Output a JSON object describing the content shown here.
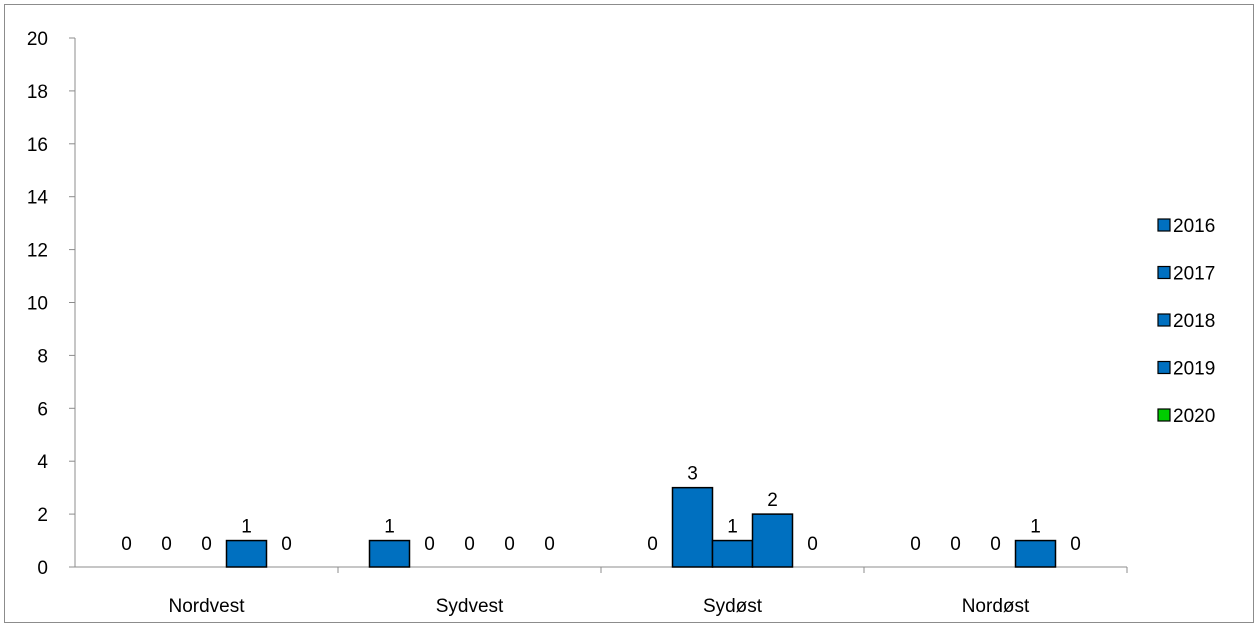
{
  "chart_data": {
    "type": "bar",
    "categories": [
      "Nordvest",
      "Sydvest",
      "Sydøst",
      "Nordøst"
    ],
    "series": [
      {
        "name": "2016",
        "values": [
          0,
          1,
          0,
          0
        ],
        "color": "#0070C0"
      },
      {
        "name": "2017",
        "values": [
          0,
          0,
          3,
          0
        ],
        "color": "#0070C0"
      },
      {
        "name": "2018",
        "values": [
          0,
          0,
          1,
          0
        ],
        "color": "#0070C0"
      },
      {
        "name": "2019",
        "values": [
          1,
          0,
          2,
          1
        ],
        "color": "#0070C0"
      },
      {
        "name": "2020",
        "values": [
          0,
          0,
          0,
          0
        ],
        "color": "#00CC00"
      }
    ],
    "ylim": [
      0,
      20
    ],
    "yticks": [
      0,
      2,
      4,
      6,
      8,
      10,
      12,
      14,
      16,
      18,
      20
    ],
    "grid": false,
    "legend_position": "right",
    "data_labels": true
  }
}
